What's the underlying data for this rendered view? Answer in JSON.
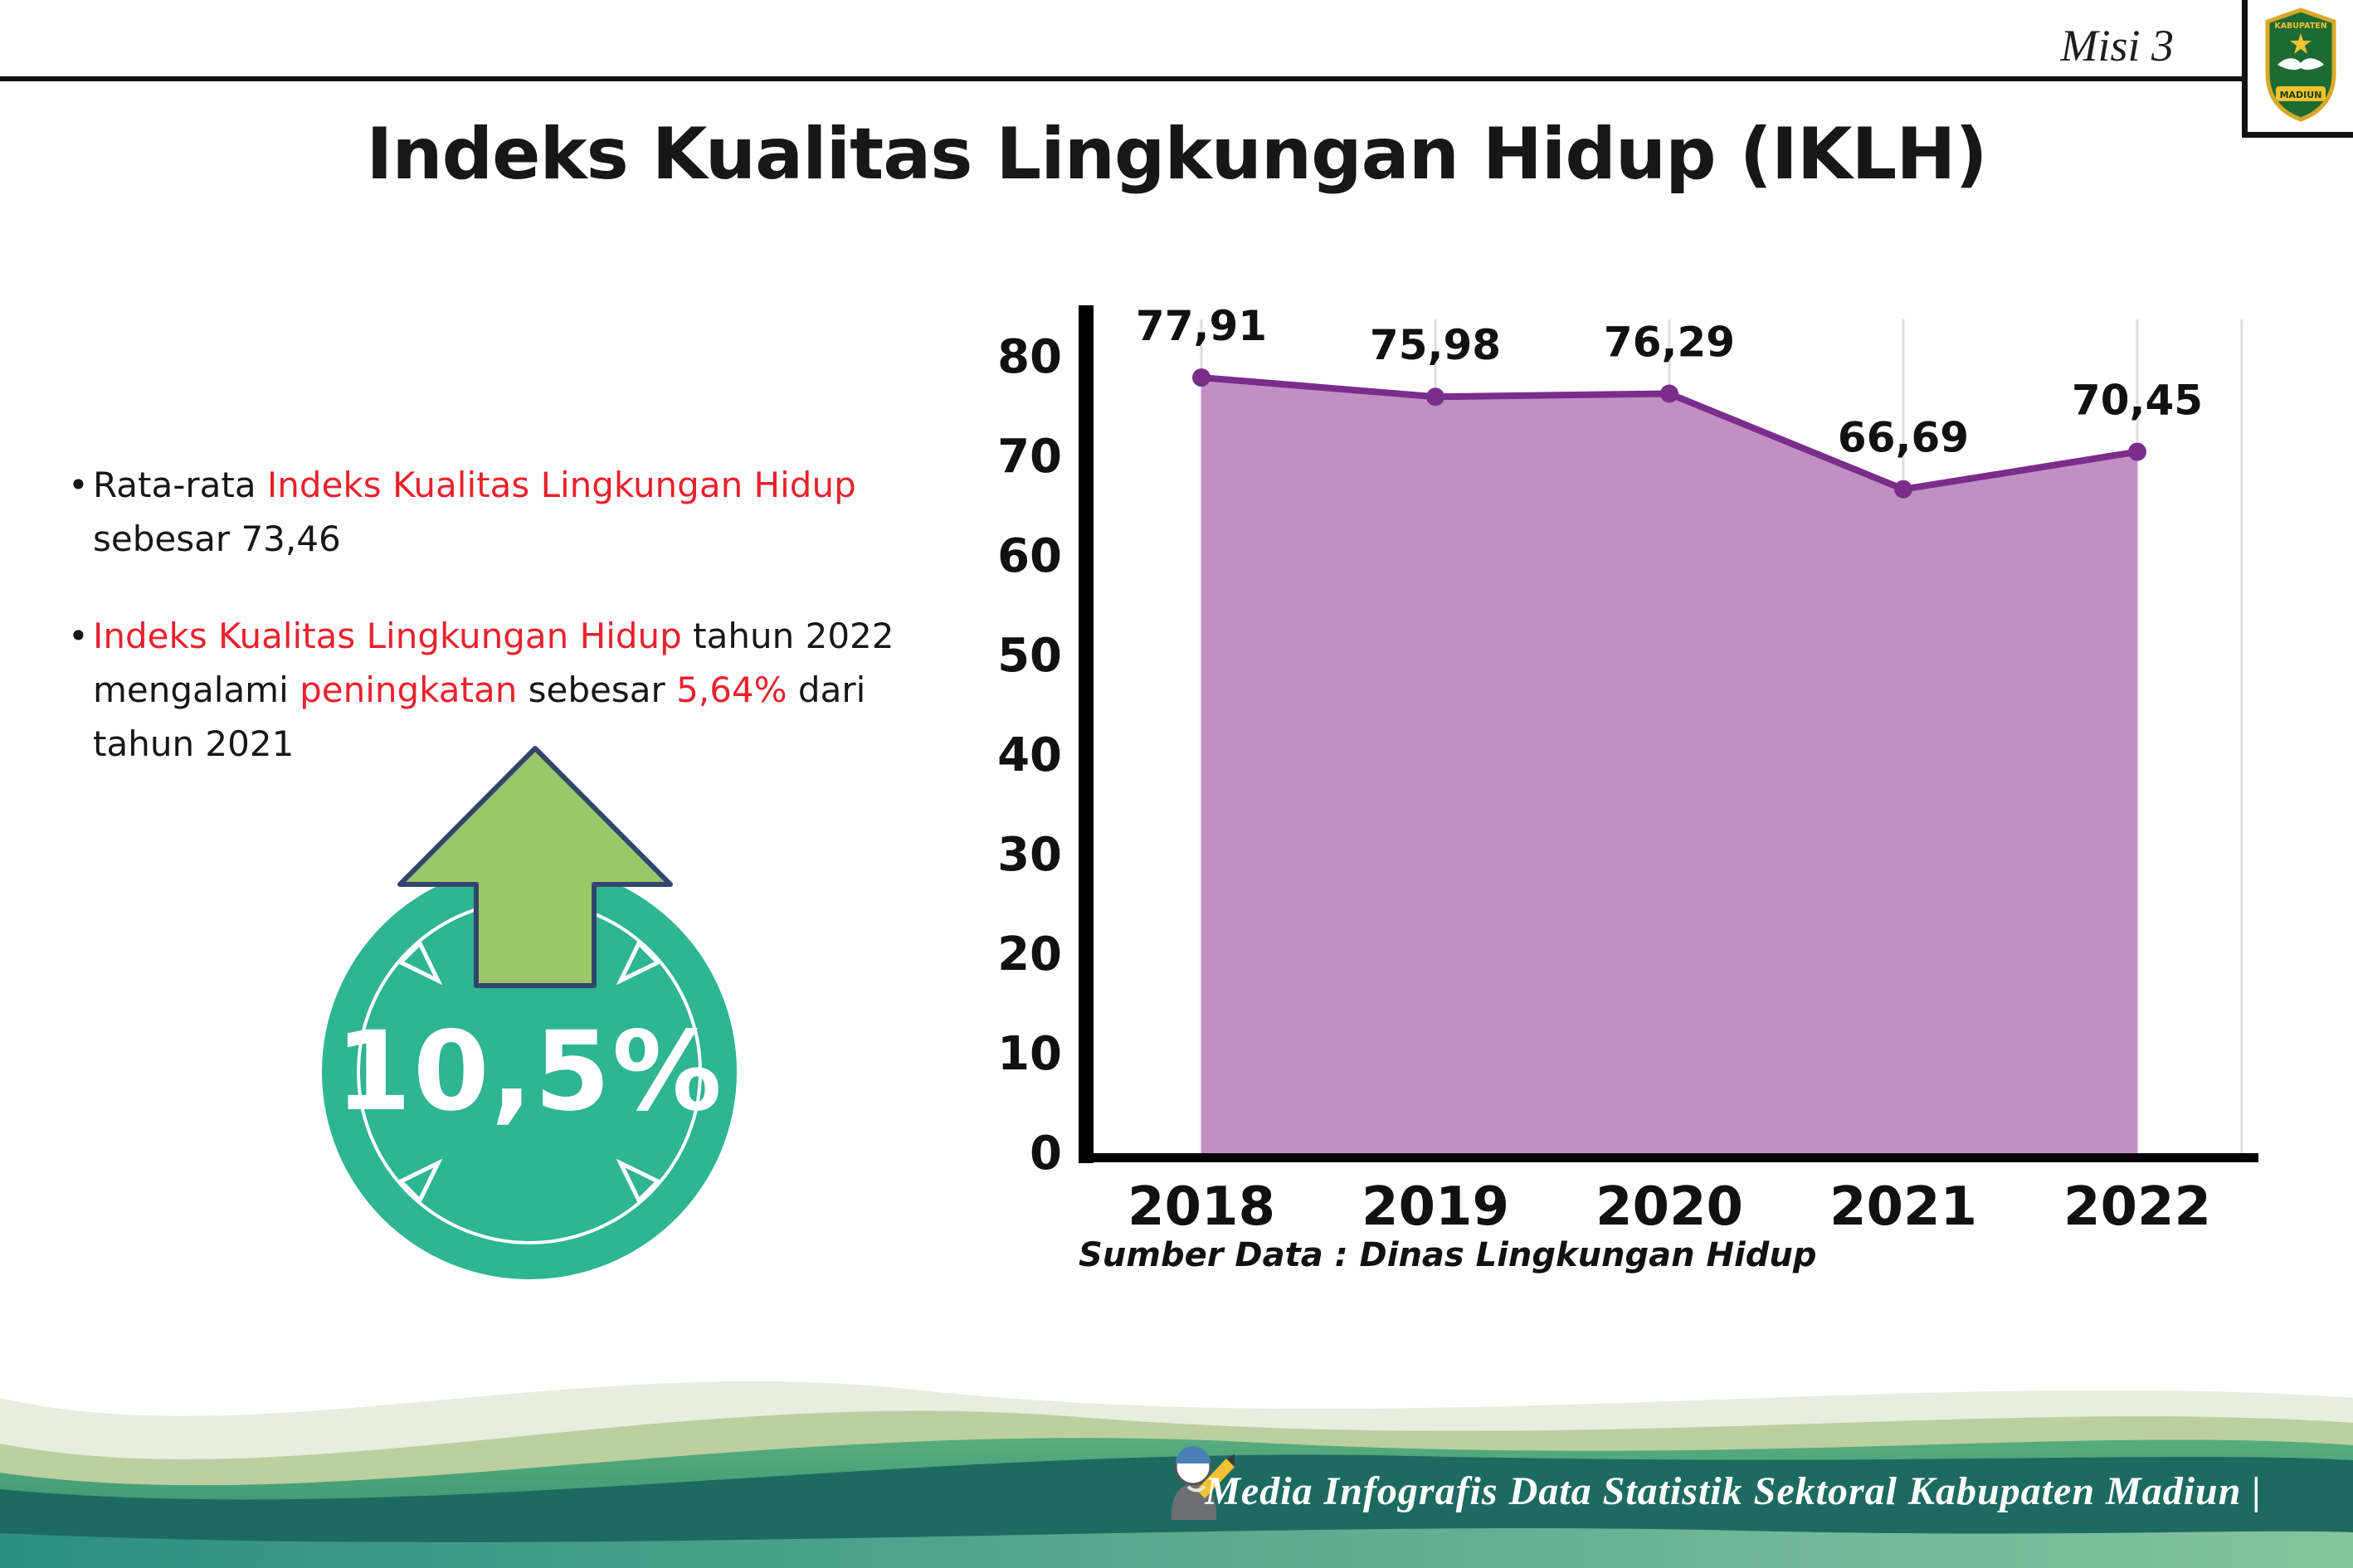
{
  "colors": {
    "red": "#e8222d",
    "teal_circle": "#2eb592",
    "arrow_green": "#9cc768",
    "arrow_outline": "#33456e",
    "area_fill": "#c18fc4",
    "line": "#7b2d8b",
    "axis": "#000000",
    "footer_dark_teal": "#1d6b60",
    "footer_green": "#3f9f78",
    "footer_sage": "#bccf9f"
  },
  "header": {
    "misi_label": "Misi 3",
    "title": "Indeks Kualitas Lingkungan Hidup (IKLH)"
  },
  "logo": {
    "text_top": "KABUPATEN",
    "text_bottom": "MADIUN"
  },
  "bullets": {
    "marker": "•",
    "b1_l1_black": "Rata-rata ",
    "b1_l1_red": "Indeks Kualitas Lingkungan Hidup",
    "b1_l2": "sebesar 73,46",
    "b2_l1_red": "Indeks Kualitas Lingkungan Hidup",
    "b2_l1_black": " tahun 2022",
    "b2_l2_a": "mengalami ",
    "b2_l2_red": "peningkatan",
    "b2_l2_b": " sebesar ",
    "b2_l2_pct": "5,64%",
    "b2_l2_c": " dari",
    "b2_l3": "tahun 2021"
  },
  "badge": {
    "value": "10,5%"
  },
  "chart_data": {
    "type": "area",
    "title": "Indeks Kualitas Lingkungan Hidup (IKLH)",
    "categories": [
      "2018",
      "2019",
      "2020",
      "2021",
      "2022"
    ],
    "values": [
      77.91,
      75.98,
      76.29,
      66.69,
      70.45
    ],
    "value_labels": [
      "77,91",
      "75,98",
      "76,29",
      "66,69",
      "70,45"
    ],
    "ylim": [
      0,
      80
    ],
    "ytick_step": 10,
    "grid": "vertical",
    "source": "Sumber Data : Dinas Lingkungan Hidup"
  },
  "footer": {
    "credit": "Media Infografis Data Statistik Sektoral Kabupaten Madiun |"
  }
}
